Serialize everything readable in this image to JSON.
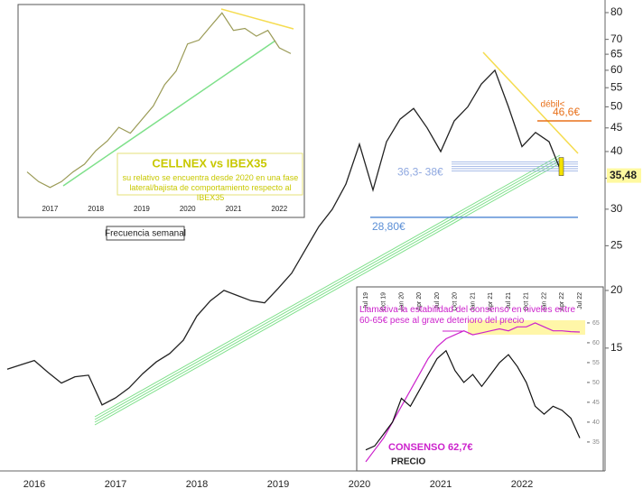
{
  "chart_data": [
    {
      "type": "line",
      "log": true,
      "color": "#222222",
      "categories": [
        null,
        null,
        "2016",
        null,
        null,
        null,
        null,
        null,
        "2017",
        null,
        null,
        null,
        null,
        null,
        "2018",
        null,
        null,
        null,
        null,
        null,
        "2019",
        null,
        null,
        null,
        null,
        null,
        "2020",
        null,
        null,
        null,
        null,
        null,
        "2021",
        null,
        null,
        null,
        null,
        null,
        "2022",
        null,
        null,
        null
      ],
      "values": [
        13.5,
        13.8,
        14.1,
        13.3,
        12.6,
        13.0,
        13.1,
        11.3,
        11.7,
        12.3,
        13.2,
        14.0,
        14.6,
        15.6,
        17.6,
        19.0,
        20.0,
        19.5,
        19.0,
        18.8,
        20.2,
        21.8,
        24.5,
        27.5,
        30.0,
        34.0,
        41.5,
        33.0,
        42.0,
        47.0,
        49.6,
        45.0,
        40.0,
        46.6,
        50.0,
        56.0,
        60.0,
        50.0,
        41.0,
        44.0,
        42.0,
        35.5
      ],
      "ylim": [
        8.2,
        83.3
      ],
      "yticks": [
        15,
        20,
        25,
        30,
        35,
        40,
        45,
        50,
        55,
        60,
        65,
        70,
        80
      ],
      "levels": [
        {
          "value": 46.6,
          "label": "46,6€",
          "color": "#e8701a"
        },
        {
          "value": 28.8,
          "label": "28,80€",
          "color": "#5b8fd6"
        }
      ],
      "band": {
        "low": 36.3,
        "high": 38,
        "label": "36,3- 38€",
        "color": "#8fa8e0"
      },
      "last": {
        "value": 35.48,
        "label": "35,48"
      },
      "annotations": [
        "débil<",
        "Frecuencia semanal"
      ]
    },
    {
      "type": "line",
      "color": "#9a9a55",
      "categories": [
        null,
        null,
        "2017",
        null,
        null,
        null,
        "2018",
        null,
        null,
        null,
        "2019",
        null,
        null,
        null,
        "2020",
        null,
        null,
        null,
        "2021",
        null,
        null,
        null,
        "2022",
        null
      ],
      "values": [
        16,
        11,
        8,
        11,
        16,
        20,
        27,
        32,
        39,
        36,
        43,
        50,
        61,
        68,
        82,
        84,
        91,
        98,
        89,
        90,
        86,
        89,
        80,
        77
      ],
      "ylim": [
        0,
        100
      ],
      "title": "CELLNEX vs IBEX35",
      "note": "su relativo se encuentra desde 2020 en una fase lateral/bajista de comportamiento respecto al IBEX35"
    },
    {
      "type": "line",
      "categories": [
        "Jul 19",
        null,
        "Oct 19",
        null,
        "Jan 20",
        null,
        "Apr 20",
        null,
        "Jul 20",
        null,
        "Oct 20",
        null,
        "Jan 21",
        null,
        "Apr 21",
        null,
        "Jul 21",
        null,
        "Oct 21",
        null,
        "Jan 22",
        null,
        "Apr 22",
        null,
        "Jul 22"
      ],
      "series": [
        {
          "name": "CONSENSO 62,7€",
          "color": "#cc22cc",
          "values": [
            30,
            33,
            36,
            40,
            44,
            48,
            52,
            56,
            59,
            61,
            62,
            63,
            62,
            62.5,
            63,
            63.5,
            63,
            64,
            64,
            65,
            64,
            63,
            63,
            62.8,
            62.7
          ]
        },
        {
          "name": "PRECIO",
          "color": "#111111",
          "values": [
            33,
            34,
            37,
            40,
            46,
            44,
            48,
            52,
            56,
            58,
            53,
            50,
            52,
            49,
            52,
            55,
            57,
            54,
            50,
            44,
            42,
            44,
            43,
            41,
            36
          ]
        }
      ],
      "ylim": [
        29.3,
        71.8
      ],
      "yticks": [
        35,
        40,
        45,
        50,
        55,
        60,
        65
      ],
      "note": "Llamativa la estabilidad del consenso en niveles entre 60-65€ pese al grave deterioro del precio"
    }
  ]
}
